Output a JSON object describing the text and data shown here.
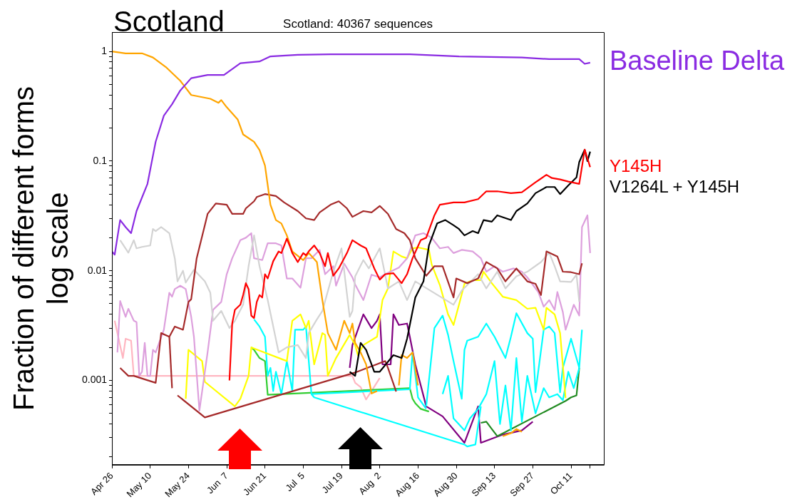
{
  "chart_data": {
    "type": "line",
    "title": "Scotland",
    "subtitle": "Scotland: 40367 sequences",
    "ylabel": "Fraction of different forms\nlog scale",
    "log": "y",
    "xlim": [
      "--04-26",
      "--10-23"
    ],
    "xticks": [
      {
        "value": "--04-26",
        "label": "Apr 26"
      },
      {
        "value": "--05-10",
        "label": "May 10"
      },
      {
        "value": "--05-24",
        "label": "May 24"
      },
      {
        "value": "--06-07",
        "label": "Jun  7"
      },
      {
        "value": "--06-21",
        "label": "Jun 21"
      },
      {
        "value": "--07-05",
        "label": "Jul  5"
      },
      {
        "value": "--07-19",
        "label": "Jul 19"
      },
      {
        "value": "--08-02",
        "label": "Aug  2"
      },
      {
        "value": "--08-16",
        "label": "Aug 16"
      },
      {
        "value": "--08-30",
        "label": "Aug 30"
      },
      {
        "value": "--09-13",
        "label": "Sep 13"
      },
      {
        "value": "--09-27",
        "label": "Sep 27"
      },
      {
        "value": "--10-11",
        "label": "Oct 11"
      },
      {
        "value": "--10-18",
        "label": null
      }
    ],
    "ylim": [
      0.00017,
      1.5
    ],
    "yticks": [
      {
        "value": 0.0002,
        "label": null
      },
      {
        "value": 0.0003,
        "label": null
      },
      {
        "value": 0.0004,
        "label": null
      },
      {
        "value": 0.0005,
        "label": null
      },
      {
        "value": 0.0006,
        "label": null
      },
      {
        "value": 0.0007,
        "label": null
      },
      {
        "value": 0.0008,
        "label": null
      },
      {
        "value": 0.0009,
        "label": null
      },
      0.001,
      {
        "value": 0.002,
        "label": null
      },
      {
        "value": 0.003,
        "label": null
      },
      {
        "value": 0.004,
        "label": null
      },
      {
        "value": 0.005,
        "label": null
      },
      {
        "value": 0.006,
        "label": null
      },
      {
        "value": 0.007,
        "label": null
      },
      {
        "value": 0.008,
        "label": null
      },
      {
        "value": 0.009,
        "label": null
      },
      0.01,
      {
        "value": 0.02,
        "label": null
      },
      {
        "value": 0.03,
        "label": null
      },
      {
        "value": 0.04,
        "label": null
      },
      {
        "value": 0.05,
        "label": null
      },
      {
        "value": 0.06,
        "label": null
      },
      {
        "value": 0.07,
        "label": null
      },
      {
        "value": 0.08,
        "label": null
      },
      {
        "value": 0.09,
        "label": null
      },
      0.1,
      {
        "value": 0.2,
        "label": null
      },
      {
        "value": 0.3,
        "label": null
      },
      {
        "value": 0.4,
        "label": null
      },
      {
        "value": 0.5,
        "label": null
      },
      {
        "value": 0.6,
        "label": null
      },
      {
        "value": 0.7,
        "label": null
      },
      {
        "value": 0.8,
        "label": null
      },
      {
        "value": 0.9,
        "label": null
      },
      1
    ],
    "series": [
      {
        "name": "Baseline Delta",
        "color": "#8a2be2",
        "x": [
          "--04-26",
          "--04-27",
          "--04-29",
          "--05-01",
          "--05-03",
          "--05-05",
          "--05-09",
          "--05-12",
          "--05-15",
          "--05-18",
          "--05-21",
          "--05-25",
          "--05-31",
          "--06-06",
          "--06-12",
          "--06-19",
          "--06-23",
          "--07-03",
          "--07-15",
          "--08-13",
          "--08-31",
          "--09-23",
          "--10-03",
          "--10-14",
          "--10-16",
          "--10-18"
        ],
        "values": [
          0.015,
          0.014,
          0.029,
          0.025,
          0.022,
          0.035,
          0.062,
          0.15,
          0.26,
          0.33,
          0.44,
          0.57,
          0.61,
          0.61,
          0.78,
          0.81,
          0.9,
          0.93,
          0.94,
          0.94,
          0.9,
          0.88,
          0.85,
          0.85,
          0.77,
          0.79
        ]
      },
      {
        "name": "Y145H",
        "color": "#ff0000",
        "x": [
          "--06-08",
          "--06-09",
          "--06-10",
          "--06-12",
          "--06-13",
          "--06-14",
          "--06-15",
          "--06-16",
          "--06-17",
          "--06-18",
          "--06-19",
          "--06-20",
          "--06-21",
          "--06-22",
          "--06-24",
          "--06-26",
          "--06-27",
          "--06-29",
          "--06-30",
          "--07-01",
          "--07-03",
          "--07-05",
          "--07-06",
          "--07-07",
          "--07-09",
          "--07-11",
          "--07-13",
          "--07-14",
          "--07-16",
          "--07-18",
          "--07-21",
          "--07-23",
          "--07-26",
          "--07-28",
          "--07-31",
          "--08-02",
          "--08-04",
          "--08-07",
          "--08-10",
          "--08-12",
          "--08-14",
          "--08-17",
          "--08-19",
          "--08-22",
          "--08-24",
          "--08-29",
          "--09-02",
          "--09-07",
          "--09-10",
          "--09-14",
          "--09-19",
          "--09-23",
          "--09-28",
          "--10-02",
          "--10-04",
          "--10-07",
          "--10-10",
          "--10-14",
          "--10-16",
          "--10-18"
        ],
        "values": [
          0.001,
          0.0033,
          0.0044,
          0.0049,
          0.006,
          0.0077,
          0.0068,
          0.0039,
          0.0037,
          0.0052,
          0.006,
          0.0057,
          0.0093,
          0.0085,
          0.0122,
          0.015,
          0.0145,
          0.0196,
          0.017,
          0.0145,
          0.012,
          0.0145,
          0.0138,
          0.015,
          0.017,
          0.0145,
          0.011,
          0.0145,
          0.009,
          0.0105,
          0.0145,
          0.019,
          0.017,
          0.016,
          0.0105,
          0.0083,
          0.0093,
          0.0095,
          0.0077,
          0.0093,
          0.013,
          0.019,
          0.02,
          0.032,
          0.04,
          0.042,
          0.042,
          0.045,
          0.053,
          0.053,
          0.051,
          0.052,
          0.064,
          0.075,
          0.07,
          0.068,
          0.065,
          0.062,
          0.127,
          0.088
        ]
      },
      {
        "name": "V1264L + Y145H",
        "color": "#000000",
        "x": [
          "--07-22",
          "--07-24",
          "--07-26",
          "--07-28",
          "--07-31",
          "--08-02",
          "--08-07",
          "--08-10",
          "--08-12",
          "--08-15",
          "--08-18",
          "--08-20",
          "--08-23",
          "--08-26",
          "--08-29",
          "--08-31",
          "--09-02",
          "--09-05",
          "--09-07",
          "--09-09",
          "--09-12",
          "--09-14",
          "--09-19",
          "--09-21",
          "--09-25",
          "--09-28",
          "--10-02",
          "--10-05",
          "--10-07",
          "--10-10",
          "--10-13",
          "--10-14",
          "--10-16",
          "--10-17",
          "--10-18"
        ],
        "values": [
          0.0012,
          0.0011,
          0.0022,
          0.0019,
          0.0012,
          0.0012,
          0.0017,
          0.0016,
          0.0024,
          0.0057,
          0.008,
          0.017,
          0.027,
          0.029,
          0.026,
          0.024,
          0.021,
          0.023,
          0.022,
          0.029,
          0.028,
          0.032,
          0.029,
          0.035,
          0.041,
          0.051,
          0.058,
          0.058,
          0.05,
          0.06,
          0.071,
          0.098,
          0.127,
          0.1,
          0.122
        ]
      },
      {
        "color": "#ffa500",
        "x": [
          "--04-26",
          "--05-01",
          "--05-07",
          "--05-11",
          "--05-16",
          "--05-21",
          "--05-25",
          "--06-01",
          "--06-04",
          "--06-05",
          "--06-07",
          "--06-11",
          "--06-13",
          "--06-17",
          "--06-19",
          "--06-21",
          "--06-23",
          "--06-25",
          "--06-27",
          "--06-29",
          "--07-01",
          "--07-05",
          "--07-07",
          "--07-10",
          "--07-12",
          "--07-14",
          "--07-17",
          "--07-20",
          "--07-22",
          "--07-23",
          "--07-24",
          "--07-26",
          "--07-28",
          "--07-30",
          "--08-01",
          "--08-04",
          "--08-09",
          "--08-10",
          "--08-12",
          "--08-14",
          "--08-16",
          "--08-24",
          "--09-16",
          "--09-19",
          "--09-21",
          "--09-23"
        ],
        "values": [
          1.0,
          0.96,
          0.96,
          0.88,
          0.71,
          0.54,
          0.4,
          0.37,
          0.34,
          0.36,
          0.31,
          0.24,
          0.175,
          0.15,
          0.126,
          0.091,
          0.04,
          0.029,
          0.027,
          0.021,
          0.015,
          0.0125,
          0.0145,
          0.012,
          0.0054,
          0.0027,
          0.0019,
          0.0035,
          0.0027,
          0.0033,
          0.0022,
          0.0018,
          0.0014,
          0.00076,
          0.0008,
          null,
          0.0009,
          0.0017,
          0.0016,
          0.0018,
          0.0009,
          null,
          0.00031,
          0.00033,
          0.00036,
          0.00034
        ]
      },
      {
        "color": "#a52a2a",
        "x": [
          "--04-29",
          "--05-02",
          "--05-04",
          "--05-12",
          "--05-14",
          "--05-17",
          "--05-19",
          "--05-22",
          "--05-24",
          "--05-25",
          "--05-27",
          "--05-30",
          "--05-31",
          "--06-03",
          "--06-07",
          "--06-09",
          "--06-13",
          "--06-14",
          "--06-17",
          "--06-18",
          "--06-21",
          "--06-25",
          "--06-28",
          "--07-03",
          "--07-06",
          "--07-09",
          "--07-11",
          "--07-15",
          "--07-18",
          "--07-21",
          "--07-23",
          "--07-27",
          "--07-30",
          "--08-02",
          "--08-05",
          "--08-08",
          "--08-11",
          "--08-13",
          "--08-15",
          "--08-19",
          "--08-22",
          "--08-25",
          "--08-29",
          "--08-30",
          "--09-03",
          "--09-07",
          "--09-10",
          "--09-14",
          "--09-17",
          "--09-21",
          "--09-25",
          "--09-28",
          "--09-30",
          "--10-02",
          "--10-06",
          "--10-08",
          "--10-11",
          "--10-14",
          "--10-15"
        ],
        "values": [
          0.0013,
          0.0011,
          0.0011,
          0.00095,
          0.0027,
          0.0025,
          0.0031,
          0.0029,
          0.0052,
          0.0055,
          0.013,
          0.026,
          0.033,
          0.041,
          0.04,
          0.033,
          0.033,
          0.037,
          0.043,
          0.047,
          0.05,
          0.048,
          0.042,
          0.035,
          0.03,
          0.029,
          0.034,
          0.04,
          0.043,
          0.037,
          0.031,
          0.035,
          0.034,
          0.039,
          0.033,
          0.024,
          0.022,
          0.019,
          0.013,
          0.009,
          0.011,
          0.011,
          0.0057,
          0.0085,
          0.0077,
          0.0085,
          0.012,
          0.0105,
          0.008,
          0.0105,
          0.008,
          0.0076,
          0.006,
          0.015,
          0.0135,
          0.0098,
          0.0097,
          0.0093,
          0.0117
        ]
      },
      {
        "color": "#a52a2a",
        "x": [
          "--05-17",
          "--05-18"
        ],
        "values": [
          0.0025,
          0.00085
        ]
      },
      {
        "color": "#a52a2a",
        "x": [
          "--05-20",
          "--05-30",
          "--07-24",
          "--08-04",
          "--08-05",
          "--08-08"
        ],
        "values": [
          0.00073,
          0.00046,
          0.00118,
          0.0015,
          0.0013,
          0.00079
        ]
      },
      {
        "color": "#d3d3d3",
        "x": [
          "--04-29",
          "--05-02",
          "--05-04",
          "--05-05",
          "--05-07",
          "--05-10",
          "--05-11",
          "--05-12",
          "--05-14",
          "--05-17",
          "--05-19",
          "--05-20",
          "--05-22",
          "--05-23",
          "--05-26",
          "--05-30",
          "--06-01",
          "--06-02",
          "--06-05",
          "--06-08",
          "--06-10",
          "--06-13",
          "--06-15",
          "--06-17",
          "--06-19",
          "--06-22",
          "--06-26",
          "--06-29",
          "--07-03",
          "--07-06",
          "--07-07",
          "--07-10",
          "--07-12",
          "--07-14",
          "--07-16",
          "--07-19",
          "--07-22",
          "--07-23",
          "--07-24",
          "--07-27",
          "--07-29",
          "--08-02",
          "--08-05",
          "--08-09",
          "--08-12",
          "--08-15",
          "--08-29",
          "--09-01",
          "--09-07",
          "--09-10",
          "--09-14",
          "--09-17",
          "--09-21",
          "--09-25",
          "--09-30",
          "--10-03",
          "--10-05",
          "--10-07",
          "--10-11",
          "--10-13",
          "--10-14"
        ],
        "values": [
          0.019,
          0.0146,
          0.019,
          0.016,
          0.0165,
          0.017,
          0.024,
          0.023,
          0.025,
          0.022,
          0.013,
          0.008,
          0.01,
          0.0078,
          0.0102,
          0.008,
          0.0063,
          0.0035,
          0.0043,
          0.003,
          0.0035,
          0.0049,
          0.011,
          0.021,
          0.011,
          0.0054,
          0.0018,
          0.002,
          0.0021,
          0.0016,
          0.0027,
          0.0036,
          0.0043,
          0.0065,
          0.0098,
          0.016,
          0.0038,
          0.0043,
          0.0089,
          0.0125,
          0.0105,
          0.016,
          0.0069,
          0.008,
          0.0054,
          0.008,
          0.0049,
          0.0066,
          0.0093,
          0.0069,
          0.0098,
          0.0069,
          0.0089,
          0.0098,
          0.012,
          0.0146,
          0.011,
          0.008,
          0.0079,
          0.0092,
          0.0052
        ]
      },
      {
        "color": "#dda0dd",
        "x": [
          "--04-28",
          "--04-29",
          "--05-01",
          "--05-02",
          "--05-04",
          "--05-05",
          "--05-06",
          "--05-07",
          "--05-08",
          "--05-09",
          "--05-10",
          "--05-11",
          "--05-12",
          "--05-15",
          "--05-17",
          "--05-18",
          "--05-19",
          "--05-21",
          "--05-23",
          "--05-25",
          "--05-26",
          "--05-28",
          "--05-31",
          "--06-02",
          "--06-05",
          "--06-07",
          "--06-09",
          "--06-12",
          "--06-14",
          "--06-16",
          "--06-17",
          "--06-20",
          "--06-22",
          "--06-25",
          "--06-27",
          "--06-29",
          "--07-01",
          "--07-04",
          "--07-06",
          "--07-08",
          "--07-11",
          "--07-13",
          "--07-16",
          "--07-17",
          "--07-20",
          "--07-23",
          "--07-24",
          "--07-27",
          "--07-30",
          "--08-02",
          "--08-04",
          "--08-09",
          "--08-12",
          "--08-15",
          "--08-18",
          "--08-21",
          "--08-24",
          "--08-27",
          "--08-29",
          "--09-01",
          "--09-05",
          "--09-08",
          "--09-10",
          "--09-13",
          "--09-16",
          "--09-20",
          "--09-23",
          "--09-25",
          "--09-29",
          "--10-01",
          "--10-03",
          "--10-05",
          "--10-06",
          "--10-08",
          "--10-09",
          "--10-12",
          "--10-14",
          "--10-15",
          "--10-17",
          "--10-18"
        ],
        "values": [
          0.0018,
          0.0053,
          0.0038,
          0.0045,
          0.0035,
          0.0034,
          0.0011,
          0.0012,
          0.0022,
          0.0011,
          0.0011,
          0.0019,
          0.0018,
          0.0029,
          0.0063,
          0.0058,
          0.0068,
          0.0073,
          0.0068,
          0.0038,
          0.0025,
          0.00053,
          0.0018,
          0.0044,
          0.0052,
          0.0093,
          0.013,
          0.019,
          0.02,
          0.022,
          0.013,
          0.0125,
          0.0178,
          0.0178,
          0.017,
          0.0085,
          0.0085,
          0.007,
          0.013,
          0.013,
          0.0155,
          0.0093,
          0.011,
          0.0073,
          0.0116,
          0.0087,
          0.0075,
          0.0054,
          0.0092,
          0.0087,
          0.0093,
          0.0107,
          0.013,
          0.021,
          0.022,
          0.02,
          0.016,
          0.0165,
          0.0145,
          0.0155,
          0.015,
          0.013,
          0.0098,
          0.011,
          0.0098,
          0.0105,
          0.0098,
          0.0087,
          0.0064,
          0.0047,
          0.0054,
          0.0044,
          0.0064,
          0.0042,
          0.0029,
          0.0049,
          0.0039,
          0.025,
          0.032,
          0.0145
        ]
      },
      {
        "color": "#ffff00",
        "x": [
          "--05-23",
          "--05-24",
          "--05-29",
          "--05-30",
          "--06-10",
          "--06-12",
          "--06-15",
          "--06-16",
          "--06-29",
          "--07-01",
          "--07-04",
          "--07-06",
          "--07-07",
          "--07-09",
          "--07-12",
          "--07-13",
          "--07-14",
          "--07-17",
          "--07-22",
          "--07-24",
          "--07-25",
          "--07-27",
          "--08-01",
          "--08-03",
          "--08-05",
          "--08-07",
          "--08-10",
          "--08-12",
          "--08-14",
          "--08-16",
          "--08-20",
          "--08-21",
          "--08-24",
          "--08-27",
          "--08-29",
          "--08-31",
          "--09-02",
          "--09-05",
          "--09-08",
          "--09-09",
          "--09-12",
          "--09-16",
          "--09-21",
          "--09-25",
          "--09-28",
          "--10-01",
          "--10-02",
          "--10-05",
          "--10-07",
          "--10-09"
        ],
        "values": [
          0.00068,
          0.0019,
          0.0015,
          0.00097,
          0.00058,
          0.00068,
          0.0011,
          0.002,
          0.0015,
          0.0035,
          0.004,
          0.003,
          0.0035,
          0.0014,
          0.0027,
          0.0026,
          0.0011,
          0.0016,
          0.0026,
          0.0021,
          0.0017,
          0.0021,
          0.0025,
          0.0054,
          0.0069,
          0.015,
          0.0135,
          0.013,
          0.016,
          0.0163,
          0.0155,
          0.0114,
          0.0074,
          0.004,
          0.0032,
          0.0049,
          0.0076,
          0.0082,
          0.0082,
          0.0098,
          0.0077,
          0.0058,
          0.0054,
          0.0045,
          0.0046,
          0.0029,
          0.0046,
          0.004,
          0.0027,
          0.00069
        ]
      },
      {
        "color": "#00ffff",
        "x": [
          "--06-17",
          "--06-19",
          "--06-21",
          "--06-22",
          "--06-23",
          "--06-24",
          "--06-25",
          "--06-27",
          "--06-29",
          "--07-01",
          "--07-02",
          "--07-05",
          "--07-06",
          "--07-08",
          "--07-09",
          "--09-02",
          "--09-03",
          "--09-06",
          "--09-08"
        ],
        "values": [
          0.0036,
          0.0031,
          0.0025,
          0.0011,
          0.0013,
          0.0008,
          0.0012,
          0.00075,
          0.0015,
          0.0008,
          0.0029,
          0.0029,
          0.0031,
          0.00075,
          0.0007,
          0.00026,
          0.00025,
          0.00026,
          0.00058
        ]
      },
      {
        "color": "#00ffff",
        "x": [
          "--07-08",
          "--08-13",
          "--08-14",
          "--08-16",
          "--08-19"
        ],
        "values": [
          0.00075,
          0.00083,
          0.0018,
          0.0007,
          0.00055
        ]
      },
      {
        "color": "#00ffff",
        "x": [
          "--08-19",
          "--08-22",
          "--08-25",
          "--08-27",
          "--08-29",
          "--09-01",
          "--09-02",
          "--09-03",
          "--09-07",
          "--09-10",
          "--09-13",
          "--09-17",
          "--09-19",
          "--09-21",
          "--09-25",
          "--09-27",
          "--09-28",
          "--10-01",
          "--10-03",
          "--10-05",
          "--10-07",
          "--10-08",
          "--10-11",
          "--10-14",
          "--10-15"
        ],
        "values": [
          0.00058,
          0.003,
          0.0039,
          0.0026,
          0.0015,
          0.00068,
          0.0019,
          0.0023,
          0.0025,
          0.0033,
          0.0025,
          0.0016,
          0.0025,
          0.0041,
          0.0027,
          0.0024,
          0.00078,
          0.0029,
          0.0031,
          0.0027,
          0.00078,
          0.0013,
          0.0024,
          0.0013,
          0.0029
        ]
      },
      {
        "color": "#00ffff",
        "x": [
          "--08-25",
          "--08-27",
          "--08-29",
          "--09-02",
          "--09-04",
          "--09-07",
          "--09-10",
          "--09-13",
          "--09-15",
          "--09-17",
          "--09-19",
          "--09-21",
          "--09-23",
          "--09-25",
          "--09-28",
          "--10-01",
          "--10-03",
          "--10-06",
          "--10-08",
          "--10-10",
          "--10-12",
          "--10-14"
        ],
        "values": [
          0.00075,
          0.0011,
          0.00045,
          0.00035,
          0.00045,
          0.00055,
          0.00075,
          0.0015,
          0.0004,
          0.0009,
          0.00035,
          0.0016,
          0.00042,
          0.0011,
          0.0005,
          0.00085,
          0.0007,
          0.00075,
          0.00066,
          0.0012,
          0.00085,
          0.0013
        ]
      },
      {
        "color": "#32cd32",
        "x": [
          "--06-16",
          "--06-17",
          "--06-19",
          "--06-21",
          "--06-22",
          "--08-13",
          "--08-14",
          "--08-15",
          "--08-17",
          "--08-20"
        ],
        "values": [
          0.002,
          0.0019,
          0.0016,
          0.0015,
          0.00074,
          0.00085,
          0.00068,
          0.00062,
          0.00055,
          0.00052
        ]
      },
      {
        "color": "#228b22",
        "x": [
          "--09-08",
          "--09-10",
          "--09-12",
          "--09-14",
          "--10-09",
          "--10-11",
          "--10-13",
          "--10-14"
        ],
        "values": [
          0.00041,
          0.00042,
          0.00036,
          0.00031,
          0.00065,
          0.0007,
          0.00073,
          0.0013
        ]
      },
      {
        "color": "#800080",
        "x": [
          "--07-22",
          "--07-23",
          "--07-27",
          "--07-30",
          "--08-01",
          "--08-02",
          "--08-03",
          "--08-06",
          "--08-07",
          "--08-09",
          "--08-12",
          "--08-13",
          "--08-15",
          "--08-19",
          "--08-25",
          "--09-02",
          "--09-07",
          "--09-08",
          "--09-16",
          "--09-23",
          "--09-27"
        ],
        "values": [
          0.0013,
          0.0021,
          0.004,
          0.003,
          0.0035,
          0.004,
          0.0014,
          0.0014,
          0.004,
          0.0032,
          0.0033,
          0.0025,
          0.0014,
          0.00058,
          0.00047,
          0.00027,
          0.00058,
          0.00027,
          0.00032,
          0.00035,
          0.00042
        ]
      },
      {
        "color": "#ffb6c1",
        "x": [
          "--04-27",
          "--04-30",
          "--05-01",
          "--05-03",
          "--05-04",
          "--07-23",
          "--07-24",
          "--07-26",
          "--07-28",
          "--07-30",
          "--08-02"
        ],
        "values": [
          0.0035,
          0.0016,
          0.0024,
          0.0023,
          0.0011,
          0.0011,
          0.00095,
          0.00087,
          0.00067,
          0.0008,
          0.00105
        ]
      }
    ]
  }
}
